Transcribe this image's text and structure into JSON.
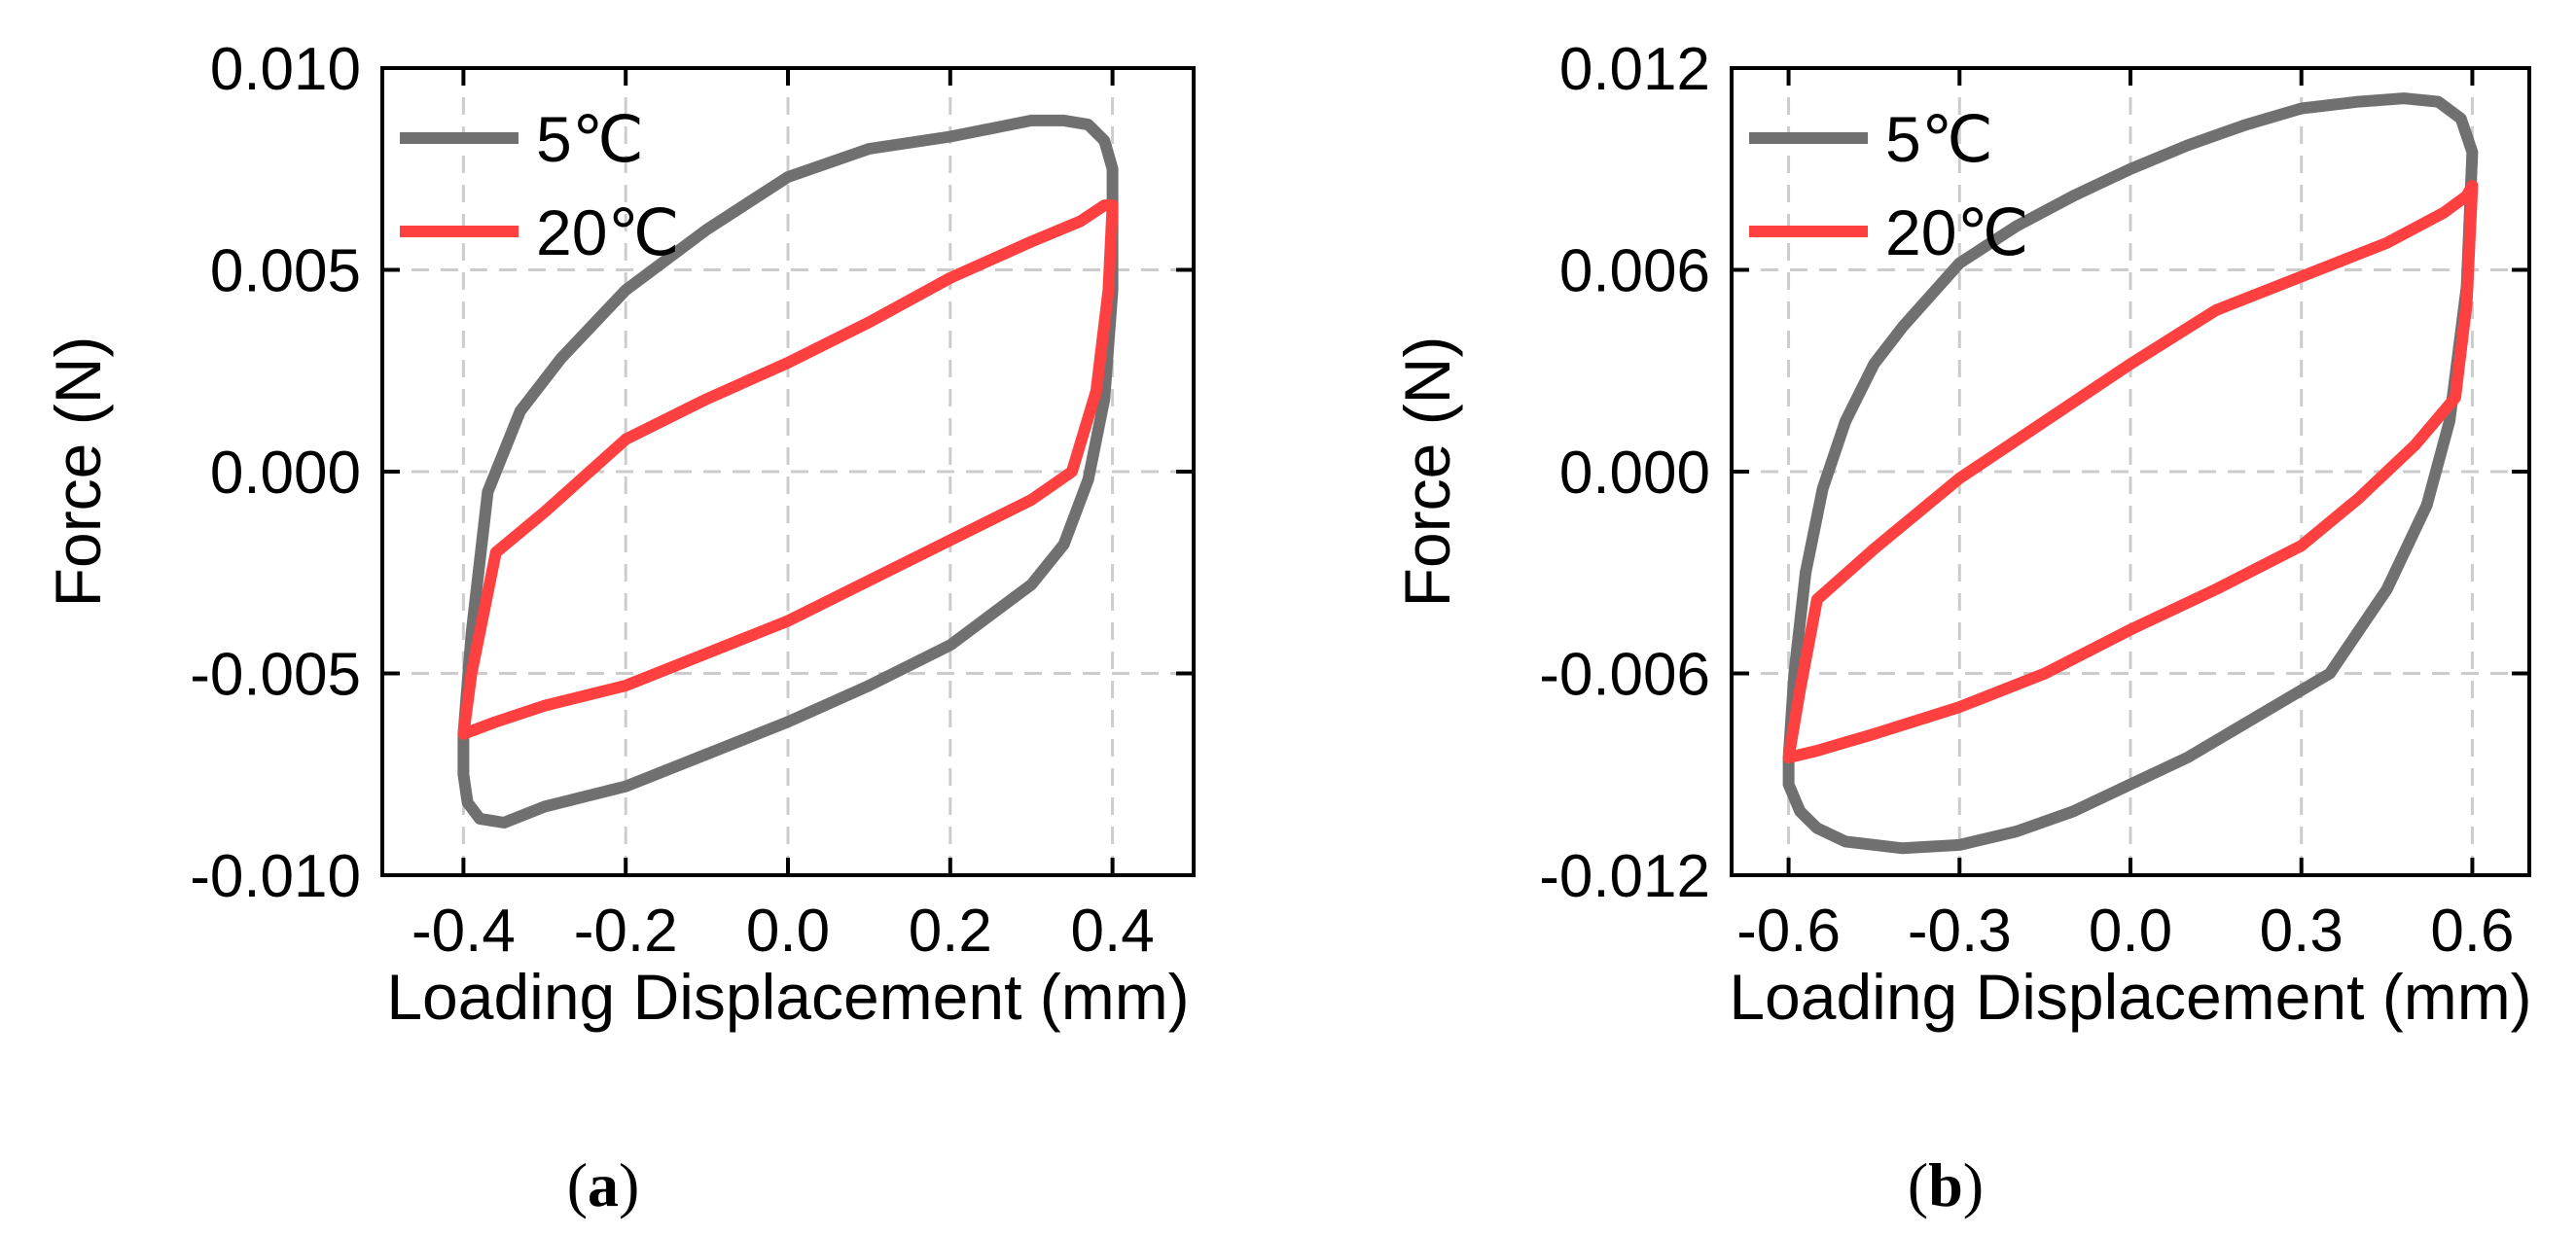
{
  "colors": {
    "gray": "#707070",
    "red": "#ff4040",
    "grid": "#cccccc",
    "axis": "#000000"
  },
  "chart_data": [
    {
      "type": "line",
      "panel_label": "a",
      "title": "",
      "xlabel": "Loading Displacement (mm)",
      "ylabel": "Force (N)",
      "xlim": [
        -0.5,
        0.5
      ],
      "ylim": [
        -0.01,
        0.01
      ],
      "xticks": [
        -0.4,
        -0.2,
        0.0,
        0.2,
        0.4
      ],
      "xtick_labels": [
        "-0.4",
        "-0.2",
        "0.0",
        "0.2",
        "0.4"
      ],
      "yticks": [
        -0.01,
        -0.005,
        0.0,
        0.005,
        0.01
      ],
      "ytick_labels": [
        "-0.010",
        "-0.005",
        "0.000",
        "0.005",
        "0.010"
      ],
      "grid": true,
      "legend_position": "top-left",
      "series": [
        {
          "name": "5℃",
          "color": "#707070",
          "x": [
            -0.4,
            -0.39,
            -0.37,
            -0.33,
            -0.28,
            -0.2,
            -0.1,
            0.0,
            0.1,
            0.2,
            0.3,
            0.34,
            0.37,
            0.39,
            0.4,
            0.4,
            0.39,
            0.37,
            0.34,
            0.3,
            0.2,
            0.1,
            0.0,
            -0.1,
            -0.2,
            -0.3,
            -0.35,
            -0.38,
            -0.395,
            -0.4,
            -0.4
          ],
          "y": [
            -0.0065,
            -0.004,
            -0.0005,
            0.0015,
            0.0028,
            0.0045,
            0.006,
            0.0073,
            0.008,
            0.0083,
            0.0087,
            0.0087,
            0.0086,
            0.0082,
            0.0075,
            0.0045,
            0.0018,
            -0.0002,
            -0.0018,
            -0.0028,
            -0.0043,
            -0.0053,
            -0.0062,
            -0.007,
            -0.0078,
            -0.0083,
            -0.0087,
            -0.0086,
            -0.0082,
            -0.0075,
            -0.0065
          ]
        },
        {
          "name": "20℃",
          "color": "#ff4040",
          "x": [
            -0.4,
            -0.39,
            -0.36,
            -0.3,
            -0.2,
            -0.1,
            0.0,
            0.1,
            0.2,
            0.3,
            0.36,
            0.39,
            0.4,
            0.395,
            0.38,
            0.35,
            0.3,
            0.2,
            0.1,
            0.0,
            -0.1,
            -0.2,
            -0.3,
            -0.36,
            -0.4
          ],
          "y": [
            -0.0065,
            -0.005,
            -0.002,
            -0.001,
            0.0008,
            0.0018,
            0.0027,
            0.0037,
            0.0048,
            0.0057,
            0.0062,
            0.0066,
            0.0066,
            0.0045,
            0.002,
            0.0,
            -0.0007,
            -0.0017,
            -0.0027,
            -0.0037,
            -0.0045,
            -0.0053,
            -0.0058,
            -0.0062,
            -0.0065
          ]
        }
      ]
    },
    {
      "type": "line",
      "panel_label": "b",
      "title": "",
      "xlabel": "Loading Displacement (mm)",
      "ylabel": "Force (N)",
      "xlim": [
        -0.7,
        0.7
      ],
      "ylim": [
        -0.012,
        0.012
      ],
      "xticks": [
        -0.6,
        -0.3,
        0.0,
        0.3,
        0.6
      ],
      "xtick_labels": [
        "-0.6",
        "-0.3",
        "0.0",
        "0.3",
        "0.6"
      ],
      "yticks": [
        -0.012,
        -0.006,
        0.0,
        0.006,
        0.012
      ],
      "ytick_labels": [
        "-0.012",
        "-0.006",
        "0.000",
        "0.006",
        "0.012"
      ],
      "grid": true,
      "legend_position": "top-left",
      "series": [
        {
          "name": "5℃",
          "color": "#707070",
          "x": [
            -0.6,
            -0.59,
            -0.57,
            -0.54,
            -0.5,
            -0.45,
            -0.4,
            -0.3,
            -0.2,
            -0.1,
            0.0,
            0.1,
            0.2,
            0.3,
            0.4,
            0.48,
            0.54,
            0.58,
            0.6,
            0.59,
            0.56,
            0.52,
            0.45,
            0.35,
            0.2,
            0.1,
            0.0,
            -0.1,
            -0.2,
            -0.3,
            -0.4,
            -0.5,
            -0.55,
            -0.58,
            -0.6,
            -0.6
          ],
          "y": [
            -0.0085,
            -0.006,
            -0.003,
            -0.0005,
            0.0015,
            0.0032,
            0.0043,
            0.0062,
            0.0073,
            0.0082,
            0.009,
            0.0097,
            0.0103,
            0.0108,
            0.011,
            0.0111,
            0.011,
            0.0105,
            0.0095,
            0.0055,
            0.0015,
            -0.001,
            -0.0035,
            -0.006,
            -0.0075,
            -0.0085,
            -0.0093,
            -0.0101,
            -0.0107,
            -0.0111,
            -0.0112,
            -0.011,
            -0.0106,
            -0.0101,
            -0.0093,
            -0.0085
          ]
        },
        {
          "name": "20℃",
          "color": "#ff4040",
          "x": [
            -0.6,
            -0.58,
            -0.55,
            -0.45,
            -0.3,
            -0.15,
            0.0,
            0.15,
            0.3,
            0.45,
            0.55,
            0.59,
            0.6,
            0.59,
            0.57,
            0.5,
            0.4,
            0.3,
            0.15,
            0.0,
            -0.15,
            -0.3,
            -0.45,
            -0.55,
            -0.6
          ],
          "y": [
            -0.0085,
            -0.0065,
            -0.0038,
            -0.0023,
            -0.0002,
            0.0015,
            0.0032,
            0.0048,
            0.0058,
            0.0068,
            0.0077,
            0.0082,
            0.0085,
            0.005,
            0.0022,
            0.0008,
            -0.0008,
            -0.0022,
            -0.0035,
            -0.0047,
            -0.006,
            -0.007,
            -0.0078,
            -0.0083,
            -0.0085
          ]
        }
      ]
    }
  ]
}
